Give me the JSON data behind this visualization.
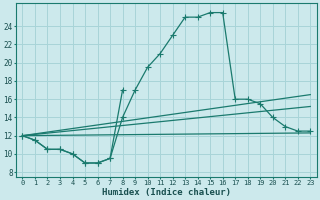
{
  "xlabel": "Humidex (Indice chaleur)",
  "bg_color": "#cce9ec",
  "grid_color": "#a8d4d8",
  "line_color": "#1a7a6e",
  "xlim": [
    -0.5,
    23.5
  ],
  "ylim": [
    7.5,
    26.5
  ],
  "xticks": [
    0,
    1,
    2,
    3,
    4,
    5,
    6,
    7,
    8,
    9,
    10,
    11,
    12,
    13,
    14,
    15,
    16,
    17,
    18,
    19,
    20,
    21,
    22,
    23
  ],
  "yticks": [
    8,
    10,
    12,
    14,
    16,
    18,
    20,
    22,
    24
  ],
  "curve_main_x": [
    0,
    1,
    2,
    3,
    4,
    5,
    6,
    7,
    8,
    9,
    10,
    11,
    12,
    13,
    14,
    15,
    16,
    17,
    18,
    19,
    20,
    21,
    22,
    23
  ],
  "curve_main_y": [
    12,
    11.5,
    10.5,
    10.5,
    10,
    9,
    9,
    9.5,
    14,
    17,
    19.5,
    21,
    23,
    25,
    25,
    25.5,
    25.5,
    16,
    16,
    15.5,
    14,
    13,
    12.5,
    12.5
  ],
  "curve_small_x": [
    0,
    1,
    2,
    3,
    4,
    5,
    6,
    7,
    8
  ],
  "curve_small_y": [
    12,
    11.5,
    10.5,
    10.5,
    10,
    9,
    9,
    9.5,
    17
  ],
  "straight_lines": [
    [
      [
        0,
        12
      ],
      [
        23,
        16.5
      ]
    ],
    [
      [
        0,
        12
      ],
      [
        23,
        15.2
      ]
    ],
    [
      [
        0,
        12
      ],
      [
        23,
        12.3
      ]
    ]
  ]
}
